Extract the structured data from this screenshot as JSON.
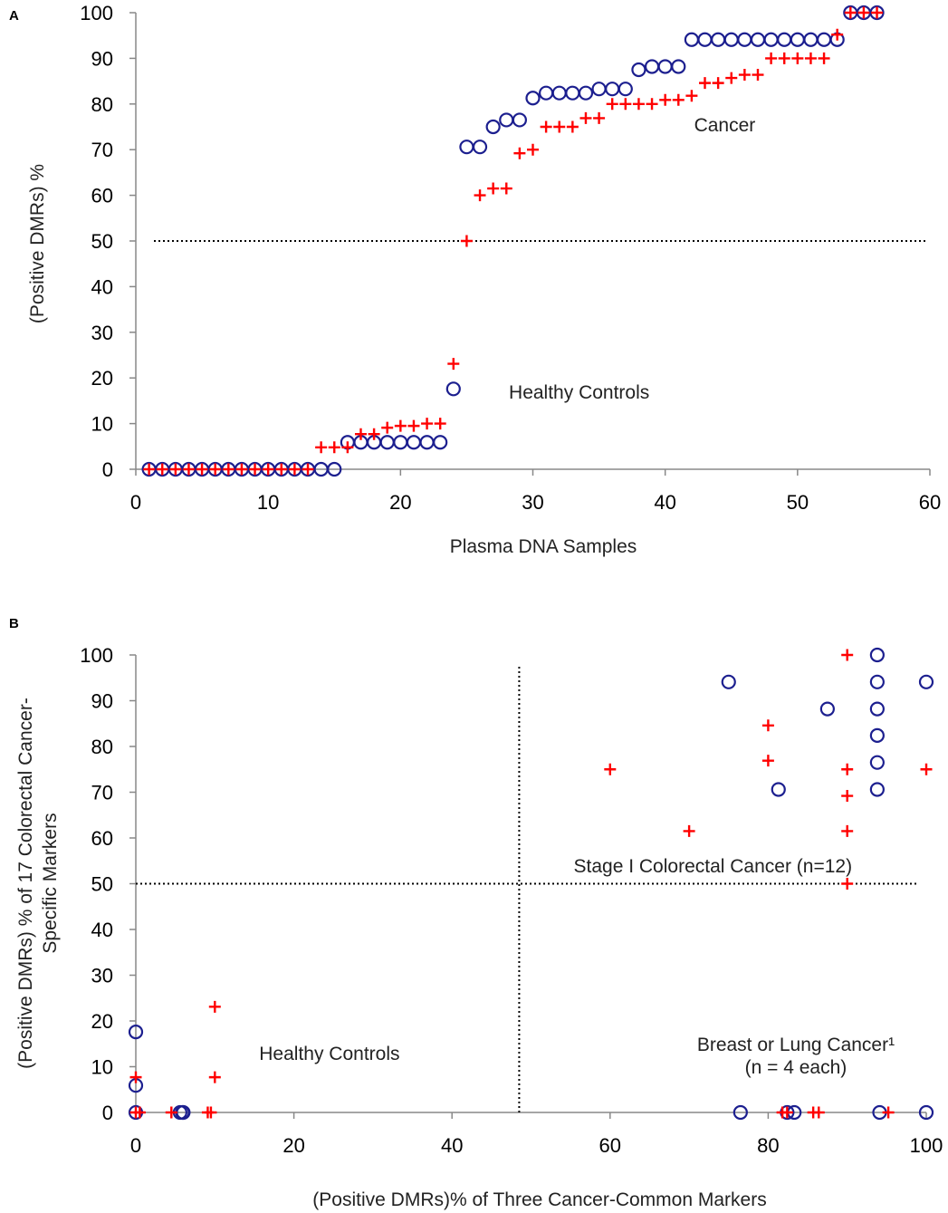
{
  "chart_data": [
    {
      "panel": "A",
      "type": "scatter",
      "xlabel": "Plasma DNA Samples",
      "ylabel": "(Positive DMRs) %",
      "xlim": [
        0,
        60
      ],
      "ylim": [
        0,
        100
      ],
      "xticks": [
        0,
        10,
        20,
        30,
        40,
        50,
        60
      ],
      "yticks": [
        0,
        10,
        20,
        30,
        40,
        50,
        60,
        70,
        80,
        90,
        100
      ],
      "threshold_y": 50,
      "annotations": [
        {
          "text": "Cancer",
          "x": 44.5,
          "y": 74
        },
        {
          "text": "Healthy Controls",
          "x": 33.5,
          "y": 15.5
        }
      ],
      "series": [
        {
          "name": "circle",
          "marker": "circle",
          "color": "#1c1f8f",
          "x": [
            1,
            2,
            3,
            4,
            5,
            6,
            7,
            8,
            9,
            10,
            11,
            12,
            13,
            14,
            15,
            16,
            17,
            18,
            19,
            20,
            21,
            22,
            23,
            24,
            25,
            26,
            27,
            28,
            29,
            30,
            31,
            32,
            33,
            34,
            35,
            36,
            37,
            38,
            39,
            40,
            41,
            42,
            43,
            44,
            45,
            46,
            47,
            48,
            49,
            50,
            51,
            52,
            53,
            54,
            55,
            56
          ],
          "y": [
            0,
            0,
            0,
            0,
            0,
            0,
            0,
            0,
            0,
            0,
            0,
            0,
            0,
            0,
            0,
            5.9,
            5.9,
            5.9,
            5.9,
            5.9,
            5.9,
            5.9,
            5.9,
            17.6,
            70.6,
            70.6,
            75,
            76.5,
            76.5,
            81.3,
            82.4,
            82.4,
            82.4,
            82.4,
            83.3,
            83.3,
            83.3,
            87.5,
            88.2,
            88.2,
            88.2,
            94.1,
            94.1,
            94.1,
            94.1,
            94.1,
            94.1,
            94.1,
            94.1,
            94.1,
            94.1,
            94.1,
            94.1,
            100,
            100,
            100
          ]
        },
        {
          "name": "plus",
          "marker": "plus",
          "color": "#ff0000",
          "x": [
            1,
            2,
            3,
            4,
            5,
            6,
            7,
            8,
            9,
            10,
            11,
            12,
            13,
            14,
            15,
            16,
            17,
            18,
            19,
            20,
            21,
            22,
            23,
            24,
            25,
            26,
            27,
            28,
            29,
            30,
            31,
            32,
            33,
            34,
            35,
            36,
            37,
            38,
            39,
            40,
            41,
            42,
            43,
            44,
            45,
            46,
            47,
            48,
            49,
            50,
            51,
            52,
            53,
            54,
            55,
            56
          ],
          "y": [
            0,
            0,
            0,
            0,
            0,
            0,
            0,
            0,
            0,
            0,
            0,
            0,
            0,
            4.8,
            4.8,
            4.8,
            7.7,
            7.7,
            9.1,
            9.5,
            9.5,
            10,
            10,
            23.1,
            50,
            60,
            61.5,
            61.5,
            69.2,
            70,
            75,
            75,
            75,
            76.9,
            76.9,
            80,
            80,
            80,
            80,
            80.9,
            80.9,
            81.8,
            84.6,
            84.6,
            85.7,
            86.4,
            86.4,
            90,
            90,
            90,
            90,
            90,
            95.2,
            100,
            100,
            100
          ]
        }
      ]
    },
    {
      "panel": "B",
      "type": "scatter",
      "xlabel": "(Positive DMRs)% of Three Cancer-Common Markers",
      "ylabel_lines": [
        "(Positive DMRs) % of 17 Colorectal Cancer-",
        "Specific Markers"
      ],
      "xlim": [
        0,
        100
      ],
      "ylim": [
        0,
        100
      ],
      "xticks": [
        0,
        20,
        40,
        60,
        80,
        100
      ],
      "yticks": [
        0,
        10,
        20,
        30,
        40,
        50,
        60,
        70,
        80,
        90,
        100
      ],
      "threshold_x": 48.5,
      "threshold_y": 50,
      "annotations": [
        {
          "text": "Stage I Colorectal Cancer (n=12)",
          "x": 73,
          "y": 52.5
        },
        {
          "text": "Healthy Controls",
          "x": 24.5,
          "y": 11.5
        },
        {
          "text": "Breast or Lung Cancer¹",
          "x": 83.5,
          "y": 13.5
        },
        {
          "text": "(n = 4 each)",
          "x": 83.5,
          "y": 8.5
        }
      ],
      "series": [
        {
          "name": "circle",
          "marker": "circle",
          "color": "#1c1f8f",
          "x": [
            75,
            87.5,
            93.8,
            93.8,
            93.8,
            93.8,
            93.8,
            81.3,
            93.8,
            100,
            0,
            0,
            0,
            5.6,
            5.9,
            6.0,
            76.5,
            82.4,
            83.3,
            94.1,
            100
          ],
          "y": [
            94.1,
            88.2,
            100,
            94.1,
            88.2,
            82.4,
            76.5,
            70.6,
            70.6,
            94.1,
            17.6,
            5.9,
            0,
            0,
            0,
            0,
            0,
            0,
            0,
            0,
            0
          ]
        },
        {
          "name": "plus",
          "marker": "plus",
          "color": "#ff0000",
          "x": [
            90,
            80,
            80,
            60,
            90,
            100,
            90,
            70,
            90,
            90,
            10,
            10,
            0,
            0,
            0.5,
            4.5,
            9.1,
            9.5,
            81.8,
            82.4,
            85.7,
            86.4,
            95.2
          ],
          "y": [
            100,
            84.6,
            76.9,
            75,
            75,
            75,
            69.2,
            61.5,
            61.5,
            50,
            23.1,
            7.7,
            7.7,
            0,
            0,
            0,
            0,
            0,
            0,
            0,
            0,
            0,
            0
          ]
        }
      ]
    }
  ]
}
